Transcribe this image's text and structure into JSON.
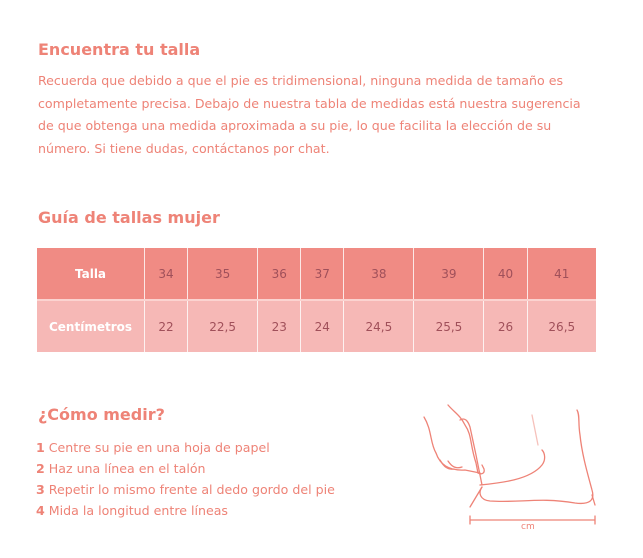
{
  "intro": {
    "title": "Encuentra tu talla",
    "text": "Recuerda que debido a que el pie es tridimensional, ninguna medida de tamaño es completamente precisa. Debajo de nuestra tabla de medidas está nuestra sugerencia de que obtenga una medida aproximada a su pie, lo que facilita la elección de su número. Si tiene dudas, contáctanos por chat."
  },
  "guide": {
    "title": "Guía de tallas mujer",
    "rows": [
      {
        "label": "Talla",
        "values": [
          "34",
          "35",
          "36",
          "37",
          "38",
          "39",
          "40",
          "41"
        ]
      },
      {
        "label": "Centímetros",
        "values": [
          "22",
          "22,5",
          "23",
          "24",
          "24,5",
          "25,5",
          "26",
          "26,5"
        ]
      }
    ]
  },
  "measure": {
    "title": "¿Cómo medir?",
    "steps": [
      {
        "n": "1",
        "text": "Centre su pie en una hoja de papel"
      },
      {
        "n": "2",
        "text": "Haz una línea en el talón"
      },
      {
        "n": "3",
        "text": "Repetir lo mismo frente al dedo gordo del pie"
      },
      {
        "n": "4",
        "text": "Mida la longitud entre líneas"
      }
    ],
    "figure_label": "cm"
  },
  "colors": {
    "accent": "#ee8377",
    "header_row": "#f08b84",
    "row": "#f6b8b6"
  }
}
